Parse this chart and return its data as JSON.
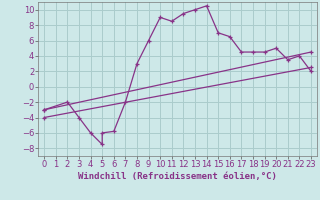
{
  "background_color": "#cde8e8",
  "grid_color": "#aacccc",
  "line_color": "#883388",
  "xlim": [
    -0.5,
    23.5
  ],
  "ylim": [
    -9,
    11
  ],
  "xlabel": "Windchill (Refroidissement éolien,°C)",
  "xlabel_fontsize": 6.5,
  "xticks": [
    0,
    1,
    2,
    3,
    4,
    5,
    6,
    7,
    8,
    9,
    10,
    11,
    12,
    13,
    14,
    15,
    16,
    17,
    18,
    19,
    20,
    21,
    22,
    23
  ],
  "yticks": [
    -8,
    -6,
    -4,
    -2,
    0,
    2,
    4,
    6,
    8,
    10
  ],
  "tick_fontsize": 6,
  "series1_x": [
    0,
    2,
    3,
    4,
    5,
    5,
    6,
    7,
    8,
    9,
    10,
    11,
    12,
    13,
    14,
    15,
    16,
    17,
    18,
    19,
    20,
    21,
    22,
    23
  ],
  "series1_y": [
    -3,
    -2,
    -4,
    -6,
    -7.5,
    -6,
    -5.8,
    -2,
    3,
    6,
    9,
    8.5,
    9.5,
    10,
    10.5,
    7,
    6.5,
    4.5,
    4.5,
    4.5,
    5,
    3.5,
    4,
    2
  ],
  "series2_x": [
    0,
    23
  ],
  "series2_y": [
    -4,
    2.5
  ],
  "series3_x": [
    0,
    23
  ],
  "series3_y": [
    -3,
    4.5
  ],
  "marker": "+"
}
